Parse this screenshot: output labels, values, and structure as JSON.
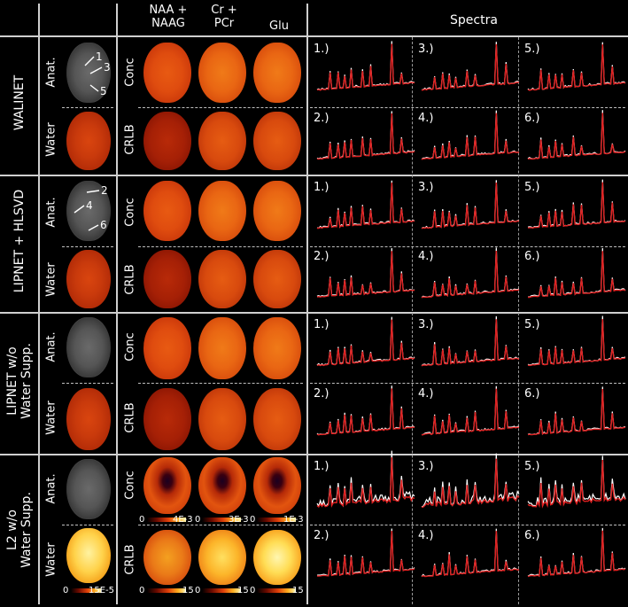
{
  "header": {
    "col_naa": "NAA +\nNAAG",
    "col_naa_line1": "NAA +",
    "col_naa_line2": "NAAG",
    "col_cr_line1": "Cr +",
    "col_cr_line2": "PCr",
    "col_glu": "Glu",
    "col_spectra": "Spectra"
  },
  "rows": [
    {
      "label": "WALINET",
      "label_line2": ""
    },
    {
      "label": "LIPNET + HLSVD",
      "label_line2": ""
    },
    {
      "label": "LIPNET w/o",
      "label_line2": "Water Supp."
    },
    {
      "label": "L2 w/o",
      "label_line2": "Water Supp."
    }
  ],
  "sub_labels": {
    "anat": "Anat.",
    "water": "Water",
    "conc": "Conc",
    "crlb": "CRLB"
  },
  "voxel_markers": [
    "1",
    "3",
    "5",
    "2",
    "4",
    "6"
  ],
  "spectra_labels": [
    "1.)",
    "3.)",
    "5.)",
    "2.)",
    "4.)",
    "6.)"
  ],
  "colorbars": {
    "water": {
      "min": "0",
      "max": "15E-5"
    },
    "conc": [
      {
        "min": "0",
        "max": "4E-3"
      },
      {
        "min": "0",
        "max": "3E-3"
      },
      {
        "min": "0",
        "max": "1E-3"
      }
    ],
    "crlb": [
      {
        "min": "0",
        "max": "15"
      },
      {
        "min": "0",
        "max": "15"
      },
      {
        "min": "0",
        "max": "15"
      }
    ]
  },
  "colors": {
    "fit_line": "#e02020",
    "spectrum_line": "#ffffff",
    "background": "#000000"
  }
}
